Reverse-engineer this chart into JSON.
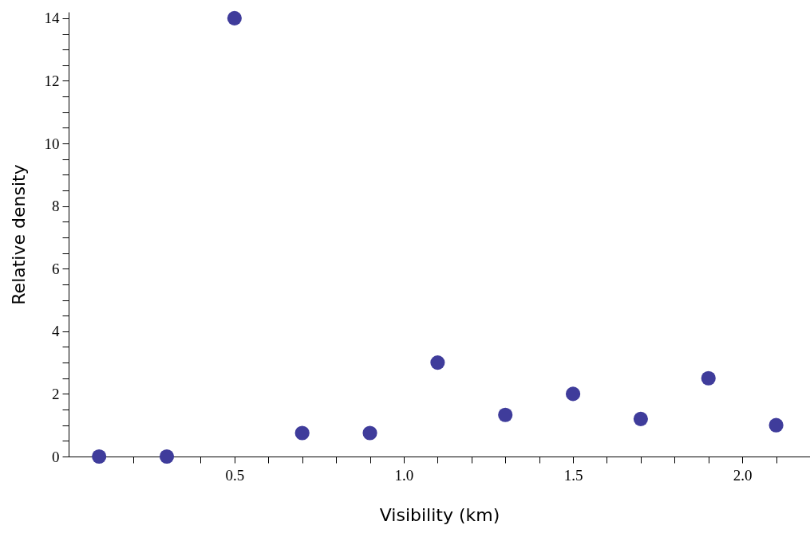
{
  "chart_data": {
    "type": "scatter",
    "xlabel": "Visibility (km)",
    "ylabel": "Relative density",
    "x": [
      0.1,
      0.3,
      0.5,
      0.7,
      0.9,
      1.1,
      1.3,
      1.5,
      1.7,
      1.9,
      2.1
    ],
    "series": [
      {
        "color": "#3f3c9b",
        "values": [
          0,
          0,
          14,
          0.75,
          0.75,
          3,
          1.33,
          2,
          1.2,
          2.5,
          1
        ]
      }
    ],
    "marker": "circle",
    "grid": false,
    "xlim": [
      0.01,
      2.2
    ],
    "xticks": [
      {
        "value": 0.1,
        "label": null
      },
      {
        "value": 0.2,
        "label": null
      },
      {
        "value": 0.3,
        "label": null
      },
      {
        "value": 0.4,
        "label": null
      },
      {
        "value": 0.5,
        "label": "0.5"
      },
      {
        "value": 0.6,
        "label": null
      },
      {
        "value": 0.7,
        "label": null
      },
      {
        "value": 0.8,
        "label": null
      },
      {
        "value": 0.9,
        "label": null
      },
      {
        "value": 1.0,
        "label": "1.0"
      },
      {
        "value": 1.1,
        "label": null
      },
      {
        "value": 1.2,
        "label": null
      },
      {
        "value": 1.3,
        "label": null
      },
      {
        "value": 1.4,
        "label": null
      },
      {
        "value": 1.5,
        "label": "1.5"
      },
      {
        "value": 1.6,
        "label": null
      },
      {
        "value": 1.7,
        "label": null
      },
      {
        "value": 1.8,
        "label": null
      },
      {
        "value": 1.9,
        "label": null
      },
      {
        "value": 2.0,
        "label": "2.0"
      },
      {
        "value": 2.1,
        "label": null
      },
      {
        "value": 2.2,
        "label": null
      }
    ],
    "ylim": [
      0,
      14.2
    ],
    "yticks": [
      0,
      {
        "value": 0.5,
        "label": null
      },
      {
        "value": 1,
        "label": null
      },
      {
        "value": 1.5,
        "label": null
      },
      2,
      {
        "value": 2.5,
        "label": null
      },
      {
        "value": 3,
        "label": null
      },
      {
        "value": 3.5,
        "label": null
      },
      4,
      {
        "value": 4.5,
        "label": null
      },
      {
        "value": 5,
        "label": null
      },
      {
        "value": 5.5,
        "label": null
      },
      6,
      {
        "value": 6.5,
        "label": null
      },
      {
        "value": 7,
        "label": null
      },
      {
        "value": 7.5,
        "label": null
      },
      8,
      {
        "value": 8.5,
        "label": null
      },
      {
        "value": 9,
        "label": null
      },
      {
        "value": 9.5,
        "label": null
      },
      10,
      {
        "value": 10.5,
        "label": null
      },
      {
        "value": 11,
        "label": null
      },
      {
        "value": 11.5,
        "label": null
      },
      12,
      {
        "value": 12.5,
        "label": null
      },
      {
        "value": 13,
        "label": null
      },
      {
        "value": 13.5,
        "label": null
      },
      14
    ]
  }
}
